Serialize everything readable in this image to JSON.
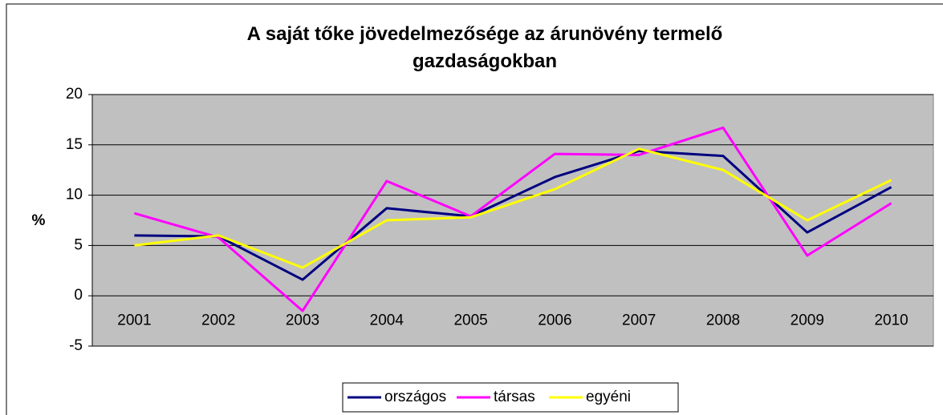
{
  "chart_data": {
    "type": "line",
    "title": "A saját tőke jövedelmezősége az árunövény termelő gazdaságokban",
    "ylabel": "%",
    "categories": [
      "2001",
      "2002",
      "2003",
      "2004",
      "2005",
      "2006",
      "2007",
      "2008",
      "2009",
      "2010"
    ],
    "series": [
      {
        "name": "országos",
        "color": "#000080",
        "values": [
          6.0,
          5.9,
          1.6,
          8.7,
          7.9,
          11.8,
          14.4,
          13.9,
          6.3,
          10.8
        ]
      },
      {
        "name": "társas",
        "color": "#ff00ff",
        "values": [
          8.2,
          5.8,
          -1.5,
          11.4,
          7.9,
          14.1,
          14.0,
          16.7,
          4.0,
          9.2
        ]
      },
      {
        "name": "egyéni",
        "color": "#ffff00",
        "values": [
          5.0,
          6.0,
          2.8,
          7.5,
          7.8,
          10.6,
          14.6,
          12.5,
          7.5,
          11.5
        ]
      }
    ],
    "ylim": [
      -5,
      20
    ],
    "yticks": [
      -5,
      0,
      5,
      10,
      15,
      20
    ],
    "grid": true,
    "legend": "bottom"
  }
}
